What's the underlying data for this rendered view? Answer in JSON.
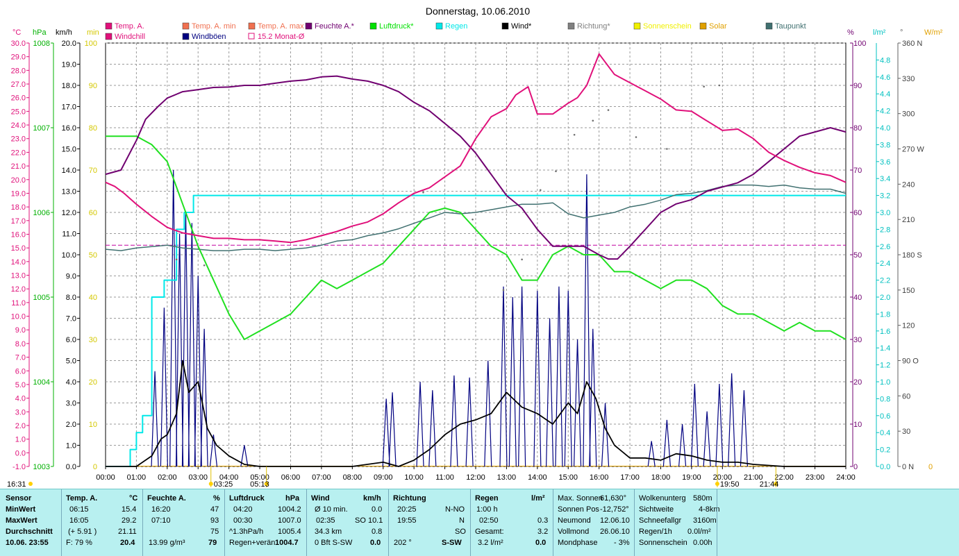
{
  "title": "Donnerstag, 10.06.2010",
  "legend": [
    {
      "label": "Temp. A.",
      "color": "#e0107a"
    },
    {
      "label": "Temp. A. min",
      "color": "#f07050"
    },
    {
      "label": "Temp. A. max",
      "color": "#f07050"
    },
    {
      "label": "Feuchte A.*",
      "color": "#700070"
    },
    {
      "label": "Luftdruck*",
      "color": "#00e000"
    },
    {
      "label": "Regen",
      "color": "#00e8e8"
    },
    {
      "label": "Wind*",
      "color": "#000000"
    },
    {
      "label": "Richtung*",
      "color": "#808080"
    },
    {
      "label": "Sonnenschein",
      "color": "#f0f000"
    },
    {
      "label": "Solar",
      "color": "#e0a000"
    },
    {
      "label": "Taupunkt",
      "color": "#407070"
    },
    {
      "label": "Windchill",
      "color": "#e0107a"
    },
    {
      "label": "Windböen",
      "color": "#000080"
    },
    {
      "label": "15.2 Monat-Ø",
      "color": "#e0107a"
    }
  ],
  "axis_units": {
    "temp": "°C",
    "press": "hPa",
    "wind": "km/h",
    "min": "min",
    "hum": "%",
    "rain": "l/m²",
    "dir": "°",
    "solar": "W/m²"
  },
  "axis_ticks": {
    "temp": [
      "30.0",
      "29.0",
      "28.0",
      "27.0",
      "26.0",
      "25.0",
      "24.0",
      "23.0",
      "22.0",
      "21.0",
      "20.0",
      "19.0",
      "18.0",
      "17.0",
      "16.0",
      "15.0",
      "14.0",
      "13.0",
      "12.0",
      "11.0",
      "10.0",
      "9.0",
      "8.0",
      "7.0",
      "6.0",
      "5.0",
      "4.0",
      "3.0",
      "2.0",
      "1.0",
      "0.0",
      "-1.0"
    ],
    "press": [
      "1008",
      "1007",
      "1006",
      "1005",
      "1004",
      "1003"
    ],
    "wind": [
      "20.0",
      "19.0",
      "18.0",
      "17.0",
      "16.0",
      "15.0",
      "14.0",
      "13.0",
      "12.0",
      "11.0",
      "10.0",
      "9.0",
      "8.0",
      "7.0",
      "6.0",
      "5.0",
      "4.0",
      "3.0",
      "2.0",
      "1.0",
      "0.0"
    ],
    "min": [
      "100",
      "90",
      "80",
      "70",
      "60",
      "50",
      "40",
      "30",
      "20",
      "10",
      "0"
    ],
    "hum": [
      "100",
      "90",
      "80",
      "70",
      "60",
      "50",
      "40",
      "30",
      "20",
      "10",
      "0"
    ],
    "rain": [
      "4.8",
      "4.6",
      "4.4",
      "4.2",
      "4.0",
      "3.8",
      "3.6",
      "3.4",
      "3.2",
      "3.0",
      "2.8",
      "2.6",
      "2.4",
      "2.2",
      "2.0",
      "1.8",
      "1.6",
      "1.4",
      "1.2",
      "1.0",
      "0.8",
      "0.6",
      "0.4",
      "0.2",
      "0.0"
    ],
    "dir": [
      "360 N",
      "330",
      "300",
      "270 W",
      "240",
      "210",
      "180 S",
      "150",
      "120",
      "90  O",
      "60",
      "30",
      "0   N"
    ],
    "solar_zero": "0",
    "time": [
      "00:00",
      "01:00",
      "02:00",
      "03:00",
      "04:00",
      "05:00",
      "06:00",
      "07:00",
      "08:00",
      "09:00",
      "10:00",
      "11:00",
      "12:00",
      "13:00",
      "14:00",
      "15:00",
      "16:00",
      "17:00",
      "18:00",
      "19:00",
      "20:00",
      "21:00",
      "22:00",
      "23:00",
      "24:00"
    ]
  },
  "sun_markers": {
    "left_time": "16:31",
    "sunrise1": "03:25",
    "sunrise2": "05:13",
    "sunset1": "19:50",
    "sunset2": "21:44"
  },
  "chart_data": {
    "type": "line",
    "title": "Donnerstag, 10.06.2010",
    "x_unit": "hours",
    "xlim": [
      0,
      24
    ],
    "series": [
      {
        "name": "Temp. A.",
        "axis": "°C",
        "ylim": [
          -1,
          30
        ],
        "x": [
          0,
          0.3,
          0.6,
          1,
          1.5,
          2,
          2.5,
          3,
          3.5,
          4,
          4.5,
          5,
          5.5,
          6,
          6.5,
          7,
          7.5,
          8,
          8.5,
          9,
          9.5,
          10,
          10.5,
          11,
          11.5,
          12,
          12.5,
          13,
          13.3,
          13.7,
          14,
          14.5,
          15,
          15.3,
          15.6,
          16,
          16.5,
          17,
          17.5,
          18,
          18.5,
          19,
          19.5,
          20,
          20.5,
          21,
          21.5,
          22,
          22.5,
          23,
          23.5,
          24
        ],
        "y": [
          19.8,
          19.5,
          19.0,
          18.2,
          17.3,
          16.5,
          16.1,
          15.9,
          15.7,
          15.7,
          15.6,
          15.6,
          15.5,
          15.4,
          15.6,
          15.9,
          16.2,
          16.6,
          16.9,
          17.5,
          18.3,
          19.0,
          19.4,
          20.2,
          21.0,
          23.0,
          24.6,
          25.2,
          26.2,
          26.8,
          24.8,
          24.8,
          25.6,
          26.0,
          26.9,
          29.2,
          27.7,
          27.1,
          26.5,
          25.9,
          25.1,
          25.0,
          24.3,
          23.6,
          23.7,
          23.0,
          22.0,
          21.4,
          20.9,
          20.5,
          20.3,
          19.8
        ]
      },
      {
        "name": "Feuchte A.*",
        "axis": "%",
        "ylim": [
          0,
          100
        ],
        "x": [
          0,
          0.5,
          1,
          1.3,
          1.7,
          2,
          2.5,
          3,
          3.5,
          4,
          4.5,
          5,
          5.5,
          6,
          6.5,
          7,
          7.5,
          8,
          8.5,
          9,
          9.5,
          10,
          10.5,
          11,
          11.5,
          12,
          12.5,
          13,
          13.5,
          14,
          14.5,
          15,
          15.5,
          16,
          16.3,
          16.6,
          17,
          17.5,
          18,
          18.5,
          19,
          19.5,
          20,
          20.5,
          21,
          21.5,
          22,
          22.5,
          23,
          23.5,
          24
        ],
        "y": [
          69,
          70,
          77,
          82,
          85,
          87,
          88.5,
          89,
          89.5,
          89.6,
          90,
          90,
          90.5,
          91,
          91.3,
          92,
          92.2,
          91.5,
          91,
          90,
          88.5,
          86,
          84,
          81,
          78,
          74,
          69,
          64,
          61,
          56,
          52,
          52,
          52,
          50,
          49,
          49,
          52,
          56,
          60,
          62,
          63,
          65,
          66,
          67,
          69,
          72,
          75,
          78,
          79,
          80,
          79
        ]
      },
      {
        "name": "Luftdruck*",
        "axis": "hPa",
        "ylim": [
          1003,
          1008
        ],
        "x": [
          0,
          0.5,
          1,
          1.5,
          2,
          2.5,
          3,
          3.5,
          4,
          4.5,
          5,
          5.5,
          6,
          6.5,
          7,
          7.5,
          8,
          8.5,
          9,
          9.5,
          10,
          10.5,
          11,
          11.5,
          12,
          12.5,
          13,
          13.5,
          14,
          14.5,
          15,
          15.5,
          16,
          16.5,
          17,
          17.5,
          18,
          18.5,
          19,
          19.5,
          20,
          20.5,
          21,
          21.5,
          22,
          22.5,
          23,
          23.5,
          24
        ],
        "y": [
          1006.9,
          1006.9,
          1006.9,
          1006.8,
          1006.6,
          1006.1,
          1005.6,
          1005.2,
          1004.8,
          1004.5,
          1004.6,
          1004.7,
          1004.8,
          1005.0,
          1005.2,
          1005.1,
          1005.2,
          1005.3,
          1005.4,
          1005.6,
          1005.8,
          1006.0,
          1006.05,
          1006.0,
          1005.8,
          1005.6,
          1005.5,
          1005.2,
          1005.2,
          1005.5,
          1005.6,
          1005.5,
          1005.5,
          1005.3,
          1005.3,
          1005.2,
          1005.1,
          1005.2,
          1005.2,
          1005.1,
          1004.9,
          1004.8,
          1004.8,
          1004.7,
          1004.6,
          1004.7,
          1004.6,
          1004.6,
          1004.5
        ]
      },
      {
        "name": "Taupunkt",
        "axis": "°C",
        "ylim": [
          -1,
          30
        ],
        "x": [
          0,
          0.5,
          1,
          1.5,
          2,
          2.5,
          3,
          3.5,
          4,
          4.5,
          5,
          5.5,
          6,
          6.5,
          7,
          7.5,
          8,
          8.5,
          9,
          9.5,
          10,
          10.5,
          11,
          11.5,
          12,
          12.5,
          13,
          13.5,
          14,
          14.5,
          15,
          15.5,
          16,
          16.5,
          17,
          17.5,
          18,
          18.5,
          19,
          19.5,
          20,
          20.5,
          21,
          21.5,
          22,
          22.5,
          23,
          23.5,
          24
        ],
        "y": [
          14.9,
          14.8,
          15.0,
          15.1,
          15.2,
          15.0,
          14.9,
          14.8,
          14.8,
          14.9,
          14.9,
          14.8,
          14.9,
          15.0,
          15.2,
          15.5,
          15.6,
          15.9,
          16.1,
          16.4,
          16.8,
          17.2,
          17.6,
          17.5,
          17.6,
          17.8,
          18.0,
          18.2,
          18.2,
          18.3,
          17.5,
          17.2,
          17.4,
          17.6,
          18.0,
          18.2,
          18.5,
          18.9,
          19.0,
          19.2,
          19.5,
          19.6,
          19.6,
          19.5,
          19.6,
          19.4,
          19.3,
          19.3,
          19.0
        ]
      },
      {
        "name": "Wind*",
        "axis": "km/h",
        "ylim": [
          0,
          20
        ],
        "x": [
          0,
          0.5,
          1,
          1.5,
          1.8,
          2,
          2.3,
          2.5,
          2.7,
          3,
          3.3,
          3.6,
          4,
          4.5,
          5,
          6,
          8,
          9,
          9.5,
          10,
          10.5,
          11,
          11.5,
          12,
          12.5,
          13,
          13.5,
          14,
          14.5,
          15,
          15.3,
          15.6,
          15.9,
          16.2,
          16.5,
          17,
          17.5,
          18,
          18.5,
          19,
          19.5,
          20,
          20.5,
          21,
          22,
          24
        ],
        "y": [
          0,
          0,
          0,
          0.5,
          1.3,
          1.5,
          2.5,
          5.0,
          3.5,
          4.0,
          1.8,
          1.0,
          0.5,
          0.1,
          0,
          0,
          0,
          0.2,
          0,
          0.3,
          0.8,
          1.5,
          2.0,
          2.2,
          2.5,
          3.5,
          2.8,
          2.5,
          2.0,
          3.0,
          2.5,
          4.0,
          3.2,
          1.8,
          1.0,
          0.4,
          0.4,
          0.3,
          0.6,
          0.5,
          0.3,
          0.2,
          0.2,
          0.1,
          0,
          0
        ]
      },
      {
        "name": "Windböen",
        "axis": "km/h",
        "ylim": [
          0,
          20
        ],
        "x": [
          1.6,
          1.9,
          2.2,
          2.4,
          2.6,
          2.8,
          3.0,
          3.2,
          3.5,
          4.5,
          9.1,
          9.3,
          10.2,
          10.6,
          11.3,
          11.8,
          12.4,
          12.9,
          13.2,
          13.5,
          14.0,
          14.4,
          14.7,
          15.0,
          15.3,
          15.6,
          15.8,
          16.2,
          17.7,
          18.2,
          18.7,
          19.1,
          19.5,
          19.9,
          20.3,
          20.7
        ],
        "y": [
          4.5,
          7.5,
          14.0,
          11.0,
          12.0,
          11.5,
          9.0,
          6.5,
          1.5,
          1.0,
          3.2,
          3.5,
          4.0,
          3.6,
          4.3,
          4.2,
          5.0,
          8.5,
          8.0,
          8.5,
          8.3,
          7.0,
          8.5,
          8.3,
          6.0,
          13.8,
          6.5,
          3.0,
          1.2,
          2.2,
          2.0,
          3.9,
          2.6,
          3.9,
          4.4,
          3.6
        ]
      },
      {
        "name": "Regen",
        "axis": "l/m²",
        "ylim": [
          0,
          5
        ],
        "x": [
          0,
          0.75,
          0.8,
          1.0,
          1.2,
          1.5,
          1.65,
          1.9,
          2.15,
          2.3,
          2.55,
          2.85,
          3.0,
          24
        ],
        "y": [
          0,
          0,
          0.2,
          0.4,
          0.6,
          2.0,
          2.0,
          2.2,
          2.2,
          2.8,
          3.0,
          3.2,
          3.2,
          3.2
        ]
      },
      {
        "name": "Richtung*",
        "axis": "°",
        "ylim": [
          0,
          360
        ],
        "x": [
          2.3,
          3.2,
          10.3,
          11.9,
          12.9,
          13.5,
          14.1,
          14.6,
          15.2,
          15.8,
          16.3,
          17.2,
          18.2,
          19.4,
          19.9
        ],
        "y": [
          176,
          171,
          233,
          210,
          150,
          176,
          235,
          251,
          282,
          294,
          303,
          280,
          270,
          323,
          324
        ]
      },
      {
        "name": "15.2 Monat-Ø",
        "axis": "°C",
        "ylim": [
          -1,
          30
        ],
        "x": [
          0,
          24
        ],
        "y": [
          15.2,
          15.2
        ]
      },
      {
        "name": "Solar",
        "axis": "W/m²",
        "x": [
          0,
          24
        ],
        "y": [
          0,
          0
        ]
      }
    ]
  },
  "stats": {
    "sensor_header": "Sensor",
    "rows": [
      "MinWert",
      "MaxWert",
      "Durchschnitt"
    ],
    "timestamp": "10.06. 23:55",
    "temp": {
      "header": "Temp. A.",
      "unit": "°C",
      "min_time": "06:15",
      "min": "15.4",
      "max_time": "16:05",
      "max": "29.2",
      "avg_extra": "(+ 5.91 )",
      "avg": "21.11",
      "cur_extra": "F: 79 %",
      "cur": "20.4"
    },
    "hum": {
      "header": "Feuchte A.",
      "unit": "%",
      "min_time": "16:20",
      "min": "47",
      "max_time": "07:10",
      "max": "93",
      "avg": "75",
      "cur_extra": "13.99 g/m³",
      "cur": "79"
    },
    "press": {
      "header": "Luftdruck",
      "unit": "hPa",
      "min_time": "04:20",
      "min": "1004.2",
      "max_time": "00:30",
      "max": "1007.0",
      "avg_extra": "^1.3hPa/h",
      "avg": "1005.4",
      "cur_extra": "Regen+verän",
      "cur": "1004.7"
    },
    "wind": {
      "header": "Wind",
      "unit": "km/h",
      "r1a": "Ø 10 min.",
      "r1b": "0.0",
      "r2a": "02:35",
      "r2b": "SO 10.1",
      "r3a": "34.3 km",
      "r3b": "0.8",
      "r4a": "0 Bft S-SW",
      "r4b": "0.0"
    },
    "dir": {
      "header": "Richtung",
      "r1a": "20:25",
      "r1b": "N-NO",
      "r2a": "19:55",
      "r2b": "N",
      "r3b": "SO",
      "r4a": "202 °",
      "r4b": "S-SW"
    },
    "rain": {
      "header": "Regen",
      "unit": "l/m²",
      "r1a": "1:00 h",
      "r2a": "02:50",
      "r2b": "0.3",
      "r3a": "Gesamt:",
      "r3b": "3.2",
      "r4a": "3.2 l/m²",
      "r4b": "0.0"
    },
    "astro": {
      "r1a": "Max. Sonnen",
      "r1b": "61,630°",
      "r2a": "Sonnen Pos",
      "r2b": "-12,752°",
      "r3a": "Neumond",
      "r3b": "12.06.10",
      "r4a": "Vollmond",
      "r4b": "26.06.10",
      "r5a": "Mondphase",
      "r5b": "- 3%"
    },
    "misc": {
      "r1a": "Wolkenunterg",
      "r1b": "580m",
      "r2a": "Sichtweite",
      "r2b": "4-8km",
      "r3a": "Schneefallgr",
      "r3b": "3160m",
      "r4a": "Regen/1h",
      "r4b": "0.0l/m²",
      "r5a": "Sonnenschein",
      "r5b": "0.00h"
    }
  }
}
